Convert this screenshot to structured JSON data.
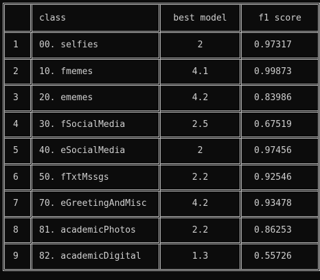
{
  "table": {
    "headers": {
      "index": "",
      "class": "class",
      "best_model": "best model",
      "f1_score": "f1 score"
    },
    "rows": [
      {
        "index": "1",
        "class": "00. selfies",
        "best_model": "2",
        "f1_score": "0.97317"
      },
      {
        "index": "2",
        "class": "10. fmemes",
        "best_model": "4.1",
        "f1_score": "0.99873"
      },
      {
        "index": "3",
        "class": "20. ememes",
        "best_model": "4.2",
        "f1_score": "0.83986"
      },
      {
        "index": "4",
        "class": "30. fSocialMedia",
        "best_model": "2.5",
        "f1_score": "0.67519"
      },
      {
        "index": "5",
        "class": "40. eSocialMedia",
        "best_model": "2",
        "f1_score": "0.97456"
      },
      {
        "index": "6",
        "class": "50. fTxtMssgs",
        "best_model": "2.2",
        "f1_score": "0.92546"
      },
      {
        "index": "7",
        "class": "70. eGreetingAndMisc",
        "best_model": "4.2",
        "f1_score": "0.93478"
      },
      {
        "index": "8",
        "class": "81. academicPhotos",
        "best_model": "2.2",
        "f1_score": "0.86253"
      },
      {
        "index": "9",
        "class": "82. academicDigital",
        "best_model": "1.3",
        "f1_score": "0.55726"
      }
    ]
  }
}
